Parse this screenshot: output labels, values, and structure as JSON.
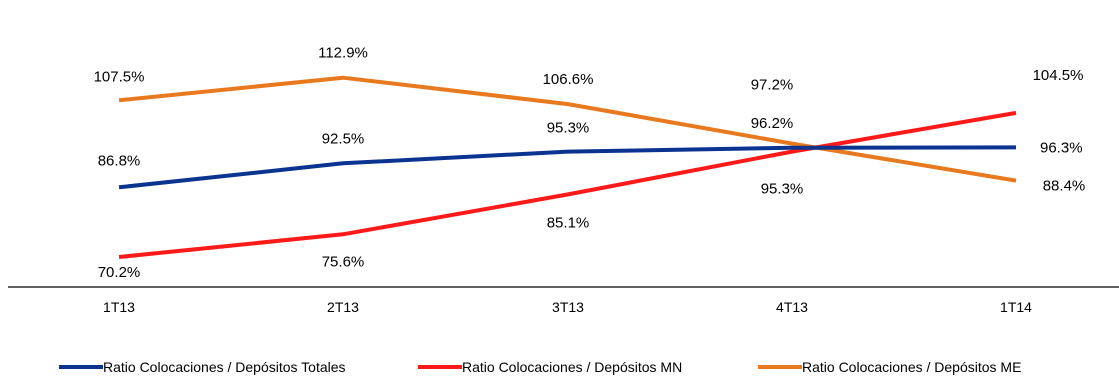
{
  "chart_data": {
    "type": "line",
    "categories": [
      "1T13",
      "2T13",
      "3T13",
      "4T13",
      "1T14"
    ],
    "ylim": [
      60,
      120
    ],
    "grid": false,
    "legend_position": "bottom",
    "series": [
      {
        "name": "Ratio Colocaciones / Depósitos Totales",
        "color": "#0a3490",
        "values": [
          86.8,
          92.5,
          95.3,
          96.2,
          96.3
        ],
        "labels": [
          "86.8%",
          "92.5%",
          "95.3%",
          "96.2%",
          "96.3%"
        ]
      },
      {
        "name": "Ratio Colocaciones / Depósitos MN",
        "color": "#ff1a1a",
        "values": [
          70.2,
          75.6,
          85.1,
          95.3,
          104.5
        ],
        "labels": [
          "70.2%",
          "75.6%",
          "85.1%",
          "95.3%",
          "104.5%"
        ]
      },
      {
        "name": "Ratio Colocaciones / Depósitos ME",
        "color": "#e8791e",
        "values": [
          107.5,
          112.9,
          106.6,
          97.2,
          88.4
        ],
        "labels": [
          "107.5%",
          "112.9%",
          "106.6%",
          "97.2%",
          "88.4%"
        ]
      }
    ]
  }
}
